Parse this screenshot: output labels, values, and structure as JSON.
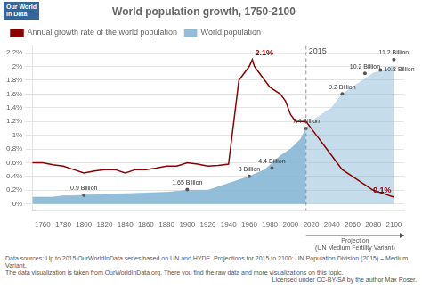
{
  "chart_data": {
    "type": "line",
    "title": "World population growth, 1750-2100",
    "logo": [
      "Our World",
      "in Data"
    ],
    "series": [
      {
        "name": "Annual growth rate of the world population",
        "type": "line",
        "color": "#8b0000",
        "x": [
          1750,
          1760,
          1770,
          1780,
          1790,
          1800,
          1810,
          1820,
          1830,
          1840,
          1850,
          1860,
          1870,
          1880,
          1890,
          1900,
          1910,
          1920,
          1930,
          1940,
          1950,
          1955,
          1960,
          1963,
          1965,
          1970,
          1975,
          1980,
          1985,
          1990,
          1995,
          2000,
          2005,
          2010,
          2015,
          2020,
          2025,
          2030,
          2035,
          2040,
          2045,
          2050,
          2060,
          2070,
          2080,
          2090,
          2100
        ],
        "values": [
          0.006,
          0.006,
          0.0057,
          0.0055,
          0.005,
          0.0045,
          0.0048,
          0.005,
          0.005,
          0.0045,
          0.005,
          0.005,
          0.0052,
          0.0055,
          0.0055,
          0.006,
          0.0058,
          0.0055,
          0.0056,
          0.0058,
          0.018,
          0.019,
          0.02,
          0.021,
          0.02,
          0.019,
          0.018,
          0.017,
          0.0165,
          0.016,
          0.015,
          0.013,
          0.012,
          0.012,
          0.012,
          0.011,
          0.01,
          0.009,
          0.008,
          0.007,
          0.006,
          0.005,
          0.004,
          0.003,
          0.002,
          0.0015,
          0.001
        ]
      },
      {
        "name": "World population",
        "type": "area",
        "color": "#7fb3d3",
        "x": [
          1750,
          1760,
          1770,
          1780,
          1790,
          1800,
          1820,
          1840,
          1860,
          1880,
          1900,
          1920,
          1940,
          1960,
          1975,
          1990,
          2000,
          2010,
          2015,
          2020,
          2030,
          2040,
          2050,
          2060,
          2070,
          2080,
          2090,
          2100
        ],
        "values": [
          0.001,
          0.001,
          0.001,
          0.0012,
          0.0012,
          0.0013,
          0.0014,
          0.0015,
          0.0016,
          0.0017,
          0.002,
          0.002,
          0.003,
          0.004,
          0.005,
          0.007,
          0.008,
          0.0095,
          0.011,
          0.012,
          0.013,
          0.014,
          0.016,
          0.017,
          0.018,
          0.019,
          0.0195,
          0.02
        ]
      }
    ],
    "xlim": [
      1750,
      2110
    ],
    "xticks": [
      1760,
      1780,
      1800,
      1820,
      1840,
      1860,
      1880,
      1900,
      1920,
      1940,
      1960,
      1980,
      2000,
      2020,
      2040,
      2060,
      2080,
      2100
    ],
    "ylim": [
      -0.001,
      0.023
    ],
    "yticks": [
      {
        "value": 0.0,
        "label": "0%"
      },
      {
        "value": 0.002,
        "label": "0.2%"
      },
      {
        "value": 0.004,
        "label": "0.4%"
      },
      {
        "value": 0.006,
        "label": "0.6%"
      },
      {
        "value": 0.008,
        "label": "0.8%"
      },
      {
        "value": 0.01,
        "label": "1%"
      },
      {
        "value": 0.012,
        "label": "1.2%"
      },
      {
        "value": 0.014,
        "label": "1.4%"
      },
      {
        "value": 0.016,
        "label": "1.6%"
      },
      {
        "value": 0.018,
        "label": "1.8%"
      },
      {
        "value": 0.02,
        "label": "2%"
      },
      {
        "value": 0.022,
        "label": "2.2%"
      }
    ],
    "grid": "y",
    "legend": "upper left",
    "annotations": [
      {
        "type": "text",
        "x": 1963,
        "y": 0.021,
        "text": "2.1%",
        "color": "#8b0000"
      },
      {
        "type": "text",
        "x": 2100,
        "y": 0.001,
        "text": "0.1%",
        "color": "#8b0000"
      },
      {
        "type": "point",
        "marker": "o",
        "x": 1800,
        "y": 0.0013,
        "text": "0.9 Billion"
      },
      {
        "type": "point",
        "marker": "o",
        "x": 1900,
        "y": 0.0021,
        "text": "1.65 Billion"
      },
      {
        "type": "point",
        "marker": "o",
        "x": 1960,
        "y": 0.004,
        "text": "3 Billion"
      },
      {
        "type": "point",
        "marker": "o",
        "x": 1982,
        "y": 0.0052,
        "text": "4.4 Billion"
      },
      {
        "type": "point",
        "marker": "o",
        "x": 2015,
        "y": 0.011,
        "text": "7.4 Billion"
      },
      {
        "type": "point",
        "marker": "o",
        "x": 2050,
        "y": 0.016,
        "text": "9.2 Billion"
      },
      {
        "type": "point",
        "marker": "o",
        "x": 2072,
        "y": 0.019,
        "text": "10.2 Billion"
      },
      {
        "type": "point",
        "marker": "o",
        "x": 2087,
        "y": 0.0195,
        "text": "10.8 Billion"
      },
      {
        "type": "point",
        "marker": "o",
        "x": 2100,
        "y": 0.021,
        "text": "11.2 Billion"
      },
      {
        "type": "vline",
        "x": 2015,
        "text": "2015",
        "line_style": "dashed"
      },
      {
        "type": "arrow_note",
        "text": [
          "Projection",
          "(UN Medium Fertility Variant)"
        ]
      }
    ],
    "source": [
      "Data sources: Up to 2015 OurWorldInData series based on UN and HYDE. Projections for 2015 to 2100: UN Population Division (2015) – Medium Variant.",
      "The data visualization is taken from OurWorldInData.org. There you find the raw data and more visualizations on this topic."
    ],
    "license": "Licensed under CC-BY-SA by the author Max Roser."
  }
}
